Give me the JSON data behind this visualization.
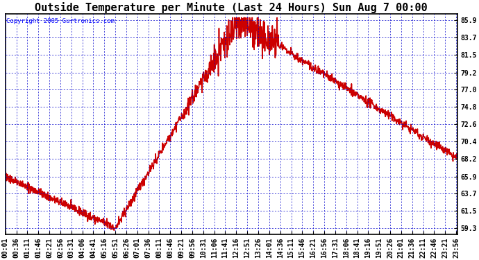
{
  "title": "Outside Temperature per Minute (Last 24 Hours) Sun Aug 7 00:00",
  "copyright": "Copyright 2005 Gurtronics.com",
  "yticks": [
    59.3,
    61.5,
    63.7,
    65.9,
    68.2,
    70.4,
    72.6,
    74.8,
    77.0,
    79.2,
    81.5,
    83.7,
    85.9
  ],
  "ylim": [
    58.5,
    86.7
  ],
  "bg_color": "#ffffff",
  "plot_bg": "#ffffff",
  "line_color": "#cc0000",
  "grid_color": "#0000cc",
  "border_color": "#000000",
  "label_color": "#000000",
  "title_fontsize": 11,
  "tick_fontsize": 7,
  "copyright_fontsize": 6.5,
  "linewidth": 1.2
}
